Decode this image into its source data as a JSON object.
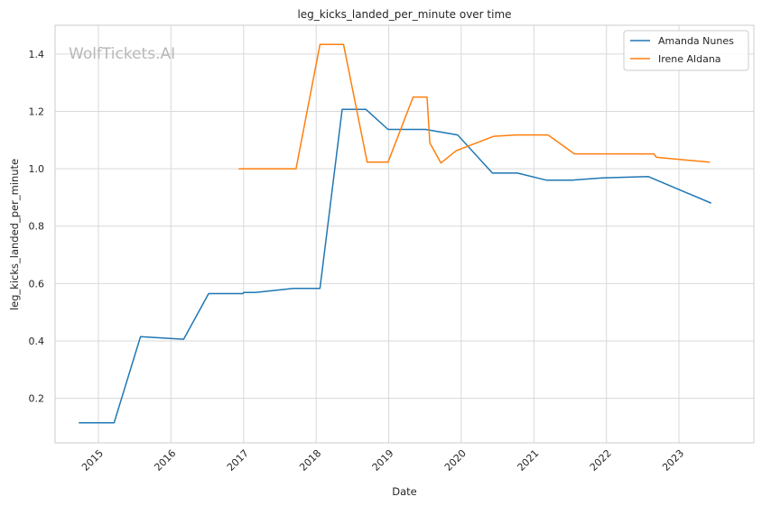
{
  "chart_data": {
    "type": "line",
    "title": "leg_kicks_landed_per_minute over time",
    "xlabel": "Date",
    "ylabel": "leg_kicks_landed_per_minute",
    "xlim": [
      "2014-05-28",
      "2024-01-13"
    ],
    "ylim": [
      0.045,
      1.5
    ],
    "x_ticks": [
      "2015",
      "2016",
      "2017",
      "2018",
      "2019",
      "2020",
      "2021",
      "2022",
      "2023"
    ],
    "y_ticks": [
      0.2,
      0.4,
      0.6,
      0.8,
      1.0,
      1.2,
      1.4
    ],
    "y_tick_labels": [
      "0.2",
      "0.4",
      "0.6",
      "0.8",
      "1.0",
      "1.2",
      "1.4"
    ],
    "grid": true,
    "legend_position": "top-right",
    "watermark": "WolfTickets.AI",
    "series": [
      {
        "name": "Amanda Nunes",
        "color": "#1f77b4",
        "points": [
          [
            "2014-09-27",
            0.115
          ],
          [
            "2015-03-21",
            0.115
          ],
          [
            "2015-08-01",
            0.415
          ],
          [
            "2016-03-05",
            0.406
          ],
          [
            "2016-07-09",
            0.565
          ],
          [
            "2016-12-30",
            0.565
          ],
          [
            "2017-01-01",
            0.569
          ],
          [
            "2017-03-01",
            0.569
          ],
          [
            "2017-09-09",
            0.583
          ],
          [
            "2018-01-20",
            0.583
          ],
          [
            "2018-05-12",
            1.207
          ],
          [
            "2018-09-08",
            1.207
          ],
          [
            "2018-12-29",
            1.137
          ],
          [
            "2019-07-06",
            1.137
          ],
          [
            "2019-12-14",
            1.118
          ],
          [
            "2020-06-06",
            0.985
          ],
          [
            "2020-10-10",
            0.985
          ],
          [
            "2021-03-06",
            0.96
          ],
          [
            "2021-07-10",
            0.96
          ],
          [
            "2021-12-11",
            0.968
          ],
          [
            "2022-07-30",
            0.973
          ],
          [
            "2023-06-10",
            0.881
          ]
        ]
      },
      {
        "name": "Irene Aldana",
        "color": "#ff7f0e",
        "points": [
          [
            "2016-12-09",
            1.0
          ],
          [
            "2017-09-22",
            1.0
          ],
          [
            "2018-01-20",
            1.433
          ],
          [
            "2018-05-19",
            1.433
          ],
          [
            "2018-09-15",
            1.023
          ],
          [
            "2018-12-29",
            1.023
          ],
          [
            "2019-05-04",
            1.25
          ],
          [
            "2019-07-13",
            1.25
          ],
          [
            "2019-07-27",
            1.09
          ],
          [
            "2019-09-21",
            1.02
          ],
          [
            "2019-12-07",
            1.063
          ],
          [
            "2020-06-13",
            1.113
          ],
          [
            "2020-10-03",
            1.118
          ],
          [
            "2021-03-13",
            1.118
          ],
          [
            "2021-07-24",
            1.052
          ],
          [
            "2022-08-27",
            1.052
          ],
          [
            "2022-09-10",
            1.04
          ],
          [
            "2023-06-03",
            1.023
          ]
        ]
      }
    ]
  }
}
